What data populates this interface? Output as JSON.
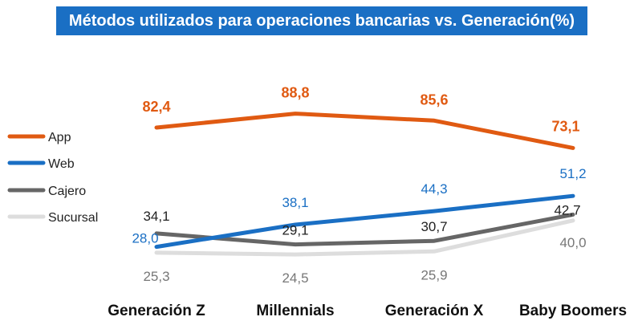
{
  "chart_data": {
    "type": "line",
    "title": "Métodos utilizados para operaciones bancarias vs. Generación(%)",
    "categories": [
      "Generación Z",
      "Millennials",
      "Generación X",
      "Baby Boomers"
    ],
    "xlabel": "",
    "ylabel": "",
    "ylim": [
      0,
      100
    ],
    "grid": false,
    "legend_position": "left",
    "series": [
      {
        "name": "App",
        "color": "#e05a12",
        "values": [
          82.4,
          88.8,
          85.6,
          73.1
        ],
        "labels": [
          "82,4",
          "88,8",
          "85,6",
          "73,1"
        ]
      },
      {
        "name": "Web",
        "color": "#1a6fc4",
        "values": [
          28.0,
          38.1,
          44.3,
          51.2
        ],
        "labels": [
          "28,0",
          "38,1",
          "44,3",
          "51,2"
        ]
      },
      {
        "name": "Cajero",
        "color": "#666666",
        "values": [
          34.1,
          29.1,
          30.7,
          42.7
        ],
        "labels": [
          "34,1",
          "29,1",
          "30,7",
          "42,7"
        ]
      },
      {
        "name": "Sucursal",
        "color": "#dddddd",
        "values": [
          25.3,
          24.5,
          25.9,
          40.0
        ],
        "labels": [
          "25,3",
          "24,5",
          "25,9",
          "40,0"
        ]
      }
    ]
  }
}
